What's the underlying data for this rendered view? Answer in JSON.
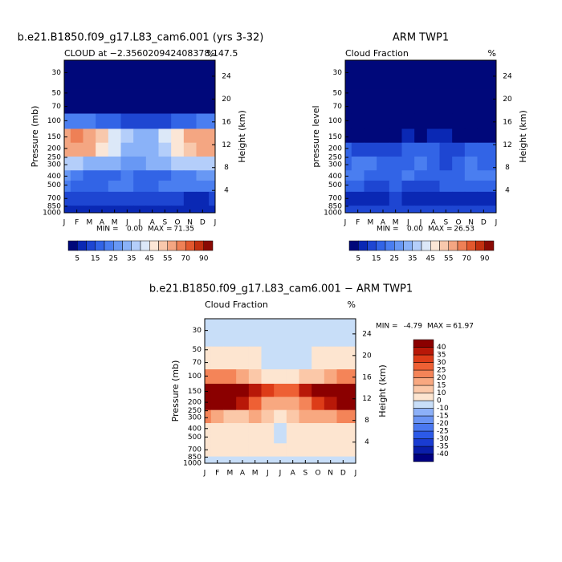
{
  "chart_data": [
    {
      "type": "heatmap",
      "title": "b.e21.B1850.f09_g17.L83_cam6.001 (yrs 3-32)",
      "subtitle": "CLOUD at −2.356020942408378,147.5",
      "unit": "%",
      "ylabel": "Pressure (mb)",
      "y2label": "Height (km)",
      "log_y": true,
      "categories": [
        "J",
        "F",
        "M",
        "A",
        "M",
        "J",
        "J",
        "A",
        "S",
        "O",
        "N",
        "D",
        "J"
      ],
      "y": [
        30,
        70,
        100,
        150,
        200,
        300,
        400,
        500,
        700,
        1000
      ],
      "values": [
        [
          1,
          1,
          1,
          1,
          1,
          1,
          1,
          1,
          1,
          1,
          1,
          1,
          1
        ],
        [
          2,
          2,
          2,
          2,
          2,
          2,
          2,
          2,
          2,
          2,
          2,
          2,
          2
        ],
        [
          22,
          22,
          20,
          18,
          15,
          12,
          10,
          10,
          12,
          15,
          18,
          20,
          22
        ],
        [
          58,
          62,
          58,
          50,
          42,
          35,
          30,
          32,
          40,
          48,
          55,
          58,
          58
        ],
        [
          55,
          58,
          55,
          48,
          40,
          33,
          30,
          32,
          38,
          45,
          52,
          55,
          55
        ],
        [
          38,
          35,
          32,
          30,
          30,
          28,
          28,
          30,
          32,
          35,
          38,
          38,
          38
        ],
        [
          28,
          22,
          15,
          15,
          18,
          20,
          15,
          15,
          18,
          20,
          22,
          25,
          28
        ],
        [
          22,
          18,
          15,
          15,
          20,
          20,
          18,
          18,
          20,
          20,
          22,
          22,
          22
        ],
        [
          12,
          12,
          10,
          10,
          10,
          12,
          10,
          10,
          10,
          10,
          8,
          8,
          12
        ],
        [
          8,
          8,
          8,
          8,
          8,
          8,
          8,
          8,
          8,
          8,
          8,
          8,
          8
        ]
      ],
      "ylim": [
        22,
        1000
      ],
      "yticks": [
        30,
        50,
        70,
        100,
        150,
        200,
        250,
        300,
        400,
        500,
        700,
        850,
        1000
      ],
      "y2lim": [
        0.09,
        26.8
      ],
      "y2ticks": [
        4,
        8,
        12,
        16,
        20,
        24
      ],
      "stats": [
        {
          "name": "MIN =",
          "value": 0,
          "value_label": "0.00"
        },
        {
          "name": "MAX =",
          "value": 71.35
        }
      ],
      "colorbar": "horizontal",
      "levels": [
        5,
        10,
        15,
        20,
        25,
        30,
        35,
        40,
        45,
        50,
        55,
        60,
        70,
        80,
        90
      ],
      "colorbar_ticks": [
        5,
        15,
        25,
        35,
        45,
        55,
        70,
        90
      ],
      "colors": [
        "#00087a",
        "#0a28b4",
        "#1e46d2",
        "#3264e6",
        "#4a7ef0",
        "#6898f4",
        "#8ab2f8",
        "#b4cefa",
        "#dce8f8",
        "#fbe6d6",
        "#f8c8ac",
        "#f4a682",
        "#ee8056",
        "#e2582e",
        "#c23010",
        "#8a0a04"
      ]
    },
    {
      "type": "heatmap",
      "title": "ARM TWP1",
      "subtitle": "Cloud Fraction",
      "unit": "%",
      "ylabel": "pressure level",
      "y2label": "Height (km)",
      "log_y": true,
      "categories": [
        "J",
        "F",
        "M",
        "A",
        "M",
        "J",
        "J",
        "A",
        "S",
        "O",
        "N",
        "D",
        "J"
      ],
      "y": [
        30,
        70,
        100,
        150,
        200,
        300,
        400,
        500,
        700,
        1000
      ],
      "values": [
        [
          0,
          0,
          0,
          0,
          0,
          0,
          0,
          0,
          0,
          0,
          0,
          0,
          0
        ],
        [
          0,
          0,
          0,
          0,
          0,
          0,
          0,
          0,
          0,
          0,
          0,
          0,
          0
        ],
        [
          1,
          1,
          1,
          1,
          1,
          1,
          1,
          1,
          1,
          1,
          1,
          1,
          1
        ],
        [
          4,
          4,
          3,
          3,
          4,
          5,
          4,
          5,
          5,
          4,
          4,
          4,
          4
        ],
        [
          15,
          14,
          13,
          12,
          14,
          16,
          15,
          15,
          14,
          13,
          15,
          15,
          15
        ],
        [
          18,
          20,
          22,
          16,
          15,
          18,
          20,
          16,
          14,
          16,
          20,
          18,
          18
        ],
        [
          20,
          22,
          18,
          15,
          18,
          20,
          18,
          15,
          16,
          18,
          20,
          20,
          20
        ],
        [
          16,
          15,
          12,
          12,
          15,
          14,
          12,
          14,
          15,
          16,
          18,
          16,
          16
        ],
        [
          8,
          6,
          7,
          8,
          10,
          8,
          7,
          8,
          9,
          6,
          7,
          8,
          8
        ],
        [
          12,
          12,
          12,
          12,
          12,
          12,
          12,
          12,
          12,
          12,
          12,
          12,
          12
        ]
      ],
      "ylim": [
        22,
        1000
      ],
      "yticks": [
        30,
        50,
        70,
        100,
        150,
        200,
        250,
        300,
        400,
        500,
        700,
        850,
        1000
      ],
      "y2lim": [
        0.09,
        26.8
      ],
      "y2ticks": [
        4,
        8,
        12,
        16,
        20,
        24
      ],
      "stats": [
        {
          "name": "MIN =",
          "value": 0,
          "value_label": "0.00"
        },
        {
          "name": "MAX =",
          "value": 26.53
        }
      ],
      "colorbar": "horizontal",
      "levels": [
        5,
        10,
        15,
        20,
        25,
        30,
        35,
        40,
        45,
        50,
        55,
        60,
        70,
        80,
        90
      ],
      "colorbar_ticks": [
        5,
        15,
        25,
        35,
        45,
        55,
        70,
        90
      ],
      "colors": [
        "#00087a",
        "#0a28b4",
        "#1e46d2",
        "#3264e6",
        "#4a7ef0",
        "#6898f4",
        "#8ab2f8",
        "#b4cefa",
        "#dce8f8",
        "#fbe6d6",
        "#f8c8ac",
        "#f4a682",
        "#ee8056",
        "#e2582e",
        "#c23010",
        "#8a0a04"
      ]
    },
    {
      "type": "heatmap",
      "title": "b.e21.B1850.f09_g17.L83_cam6.001 − ARM TWP1",
      "subtitle": "Cloud Fraction",
      "unit": "%",
      "ylabel": "Pressure (mb)",
      "y2label": "Height (km)",
      "log_y": true,
      "categories": [
        "J",
        "F",
        "M",
        "A",
        "M",
        "J",
        "J",
        "A",
        "S",
        "O",
        "N",
        "D",
        "J"
      ],
      "y": [
        30,
        70,
        100,
        150,
        200,
        300,
        400,
        500,
        700,
        1000
      ],
      "values": [
        [
          -3,
          -3,
          -3,
          -3,
          -3,
          -3,
          -3,
          -3,
          -3,
          -3,
          -3,
          -3,
          -3
        ],
        [
          3,
          3,
          3,
          2,
          1,
          -2,
          -2,
          -2,
          -1,
          2,
          3,
          3,
          3
        ],
        [
          22,
          22,
          20,
          18,
          12,
          8,
          6,
          6,
          10,
          14,
          18,
          20,
          22
        ],
        [
          54,
          58,
          55,
          47,
          38,
          30,
          26,
          27,
          35,
          44,
          51,
          54,
          54
        ],
        [
          40,
          44,
          42,
          36,
          26,
          17,
          15,
          17,
          24,
          32,
          37,
          40,
          40
        ],
        [
          20,
          15,
          10,
          14,
          15,
          10,
          8,
          14,
          18,
          19,
          18,
          20,
          20
        ],
        [
          8,
          2,
          1,
          2,
          3,
          2,
          -3,
          2,
          2,
          2,
          2,
          5,
          8
        ],
        [
          6,
          3,
          3,
          3,
          5,
          6,
          -2,
          4,
          5,
          4,
          4,
          6,
          6
        ],
        [
          4,
          6,
          3,
          2,
          1,
          4,
          3,
          2,
          1,
          4,
          1,
          1,
          4
        ],
        [
          -4,
          -4,
          -4,
          -4,
          -4,
          -4,
          -4,
          -4,
          -4,
          -4,
          -4,
          -4,
          -4
        ]
      ],
      "ylim": [
        22,
        1000
      ],
      "yticks": [
        30,
        50,
        70,
        100,
        150,
        200,
        250,
        300,
        400,
        500,
        700,
        850,
        1000
      ],
      "y2lim": [
        0.09,
        26.8
      ],
      "y2ticks": [
        4,
        8,
        12,
        16,
        20,
        24
      ],
      "stats": [
        {
          "name": "MIN =",
          "value": -4.79
        },
        {
          "name": "MAX =",
          "value": 61.97
        }
      ],
      "colorbar": "vertical",
      "levels": [
        -40,
        -35,
        -30,
        -25,
        -20,
        -15,
        -10,
        0,
        10,
        15,
        20,
        25,
        30,
        35,
        40
      ],
      "colorbar_ticks": [
        -40,
        -35,
        -30,
        -25,
        -20,
        -15,
        -10,
        0,
        10,
        15,
        20,
        25,
        30,
        35,
        40
      ],
      "colors": [
        "#000080",
        "#0a1eaa",
        "#1a3cd2",
        "#2c5ae8",
        "#4a78f0",
        "#6a94f4",
        "#8cb0f8",
        "#c8def8",
        "#fde5d0",
        "#fbc8a8",
        "#f8a880",
        "#f48458",
        "#ee6034",
        "#dd3c18",
        "#b81808",
        "#8b0000"
      ]
    }
  ]
}
